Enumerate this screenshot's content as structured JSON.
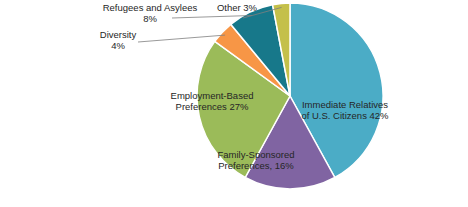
{
  "chart_data": {
    "type": "pie",
    "categories": [
      "Immediate Relatives of U.S. Citizens",
      "Family-Sponsored Preferences,",
      "Employment-Based Preferences",
      "Diversity",
      "Refugees and Asylees",
      "Other"
    ],
    "values": [
      42,
      16,
      27,
      4,
      8,
      3
    ],
    "value_labels": [
      "42%",
      "16%",
      "27%",
      "4%",
      "8%",
      "3%"
    ],
    "colors": [
      "#4bacc6",
      "#8064a2",
      "#9bbb59",
      "#f79646",
      "#17788a",
      "#c4c04a"
    ],
    "data_labels": true
  }
}
